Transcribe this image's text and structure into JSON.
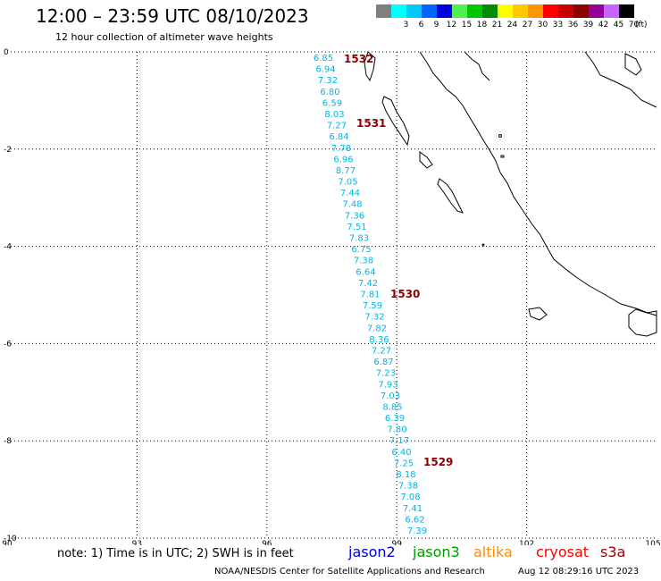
{
  "header": {
    "title": "12:00 – 23:59 UTC 08/10/2023",
    "subtitle": "12 hour collection of altimeter wave heights"
  },
  "legend": {
    "unit": "(ft)",
    "bins": [
      {
        "label": "",
        "color": "#7f7f7f"
      },
      {
        "label": "3",
        "color": "#00ffff"
      },
      {
        "label": "6",
        "color": "#00c8ff"
      },
      {
        "label": "9",
        "color": "#0064ff"
      },
      {
        "label": "12",
        "color": "#0000e0"
      },
      {
        "label": "15",
        "color": "#50f050"
      },
      {
        "label": "18",
        "color": "#00c800"
      },
      {
        "label": "21",
        "color": "#008c00"
      },
      {
        "label": "24",
        "color": "#ffff00"
      },
      {
        "label": "27",
        "color": "#ffc800"
      },
      {
        "label": "30",
        "color": "#ff9600"
      },
      {
        "label": "33",
        "color": "#ff0000"
      },
      {
        "label": "36",
        "color": "#c80000"
      },
      {
        "label": "39",
        "color": "#8c0000"
      },
      {
        "label": "42",
        "color": "#960096"
      },
      {
        "label": "45",
        "color": "#c864ff"
      },
      {
        "label": "70",
        "color": "#000000"
      }
    ]
  },
  "map": {
    "lon_ticks": [
      "90",
      "93",
      "96",
      "99",
      "102",
      "105"
    ],
    "lat_ticks": [
      "0",
      "-2",
      "-4",
      "-6",
      "-8",
      "-10"
    ],
    "track_color": "#00b4e6",
    "pass_label_color": "#8b0000",
    "track_values": [
      "6.85",
      "6.94",
      "7.32",
      "6.80",
      "6.59",
      "8.03",
      "7.27",
      "6.84",
      "7.78",
      "6.96",
      "8.77",
      "7.05",
      "7.44",
      "7.48",
      "7.36",
      "7.51",
      "7.83",
      "6.75",
      "7.38",
      "6.64",
      "7.42",
      "7.81",
      "7.59",
      "7.32",
      "7.82",
      "8.36",
      "7.27",
      "6.87",
      "7.23",
      "7.93",
      "7.03",
      "8.85",
      "6.39",
      "7.80",
      "7.17",
      "6.40",
      "7.25",
      "8.18",
      "7.38",
      "7.08",
      "7.41",
      "6.62",
      "7.39"
    ],
    "pass_labels": [
      "1532",
      "1531",
      "1530",
      "1529"
    ]
  },
  "footer": {
    "note": "note:  1) Time is in UTC;  2) SWH is in feet",
    "satellites": [
      {
        "name": "jason2",
        "color": "#0000cc"
      },
      {
        "name": "jason3",
        "color": "#009900"
      },
      {
        "name": "altika",
        "color": "#ff8c00"
      },
      {
        "name": "cryosat",
        "color": "#ff0000"
      },
      {
        "name": "s3a",
        "color": "#8b0000"
      }
    ],
    "credit": "NOAA/NESDIS Center for Satellite Applications and Research",
    "timestamp": "Aug 12 08:29:16 UTC 2023"
  }
}
